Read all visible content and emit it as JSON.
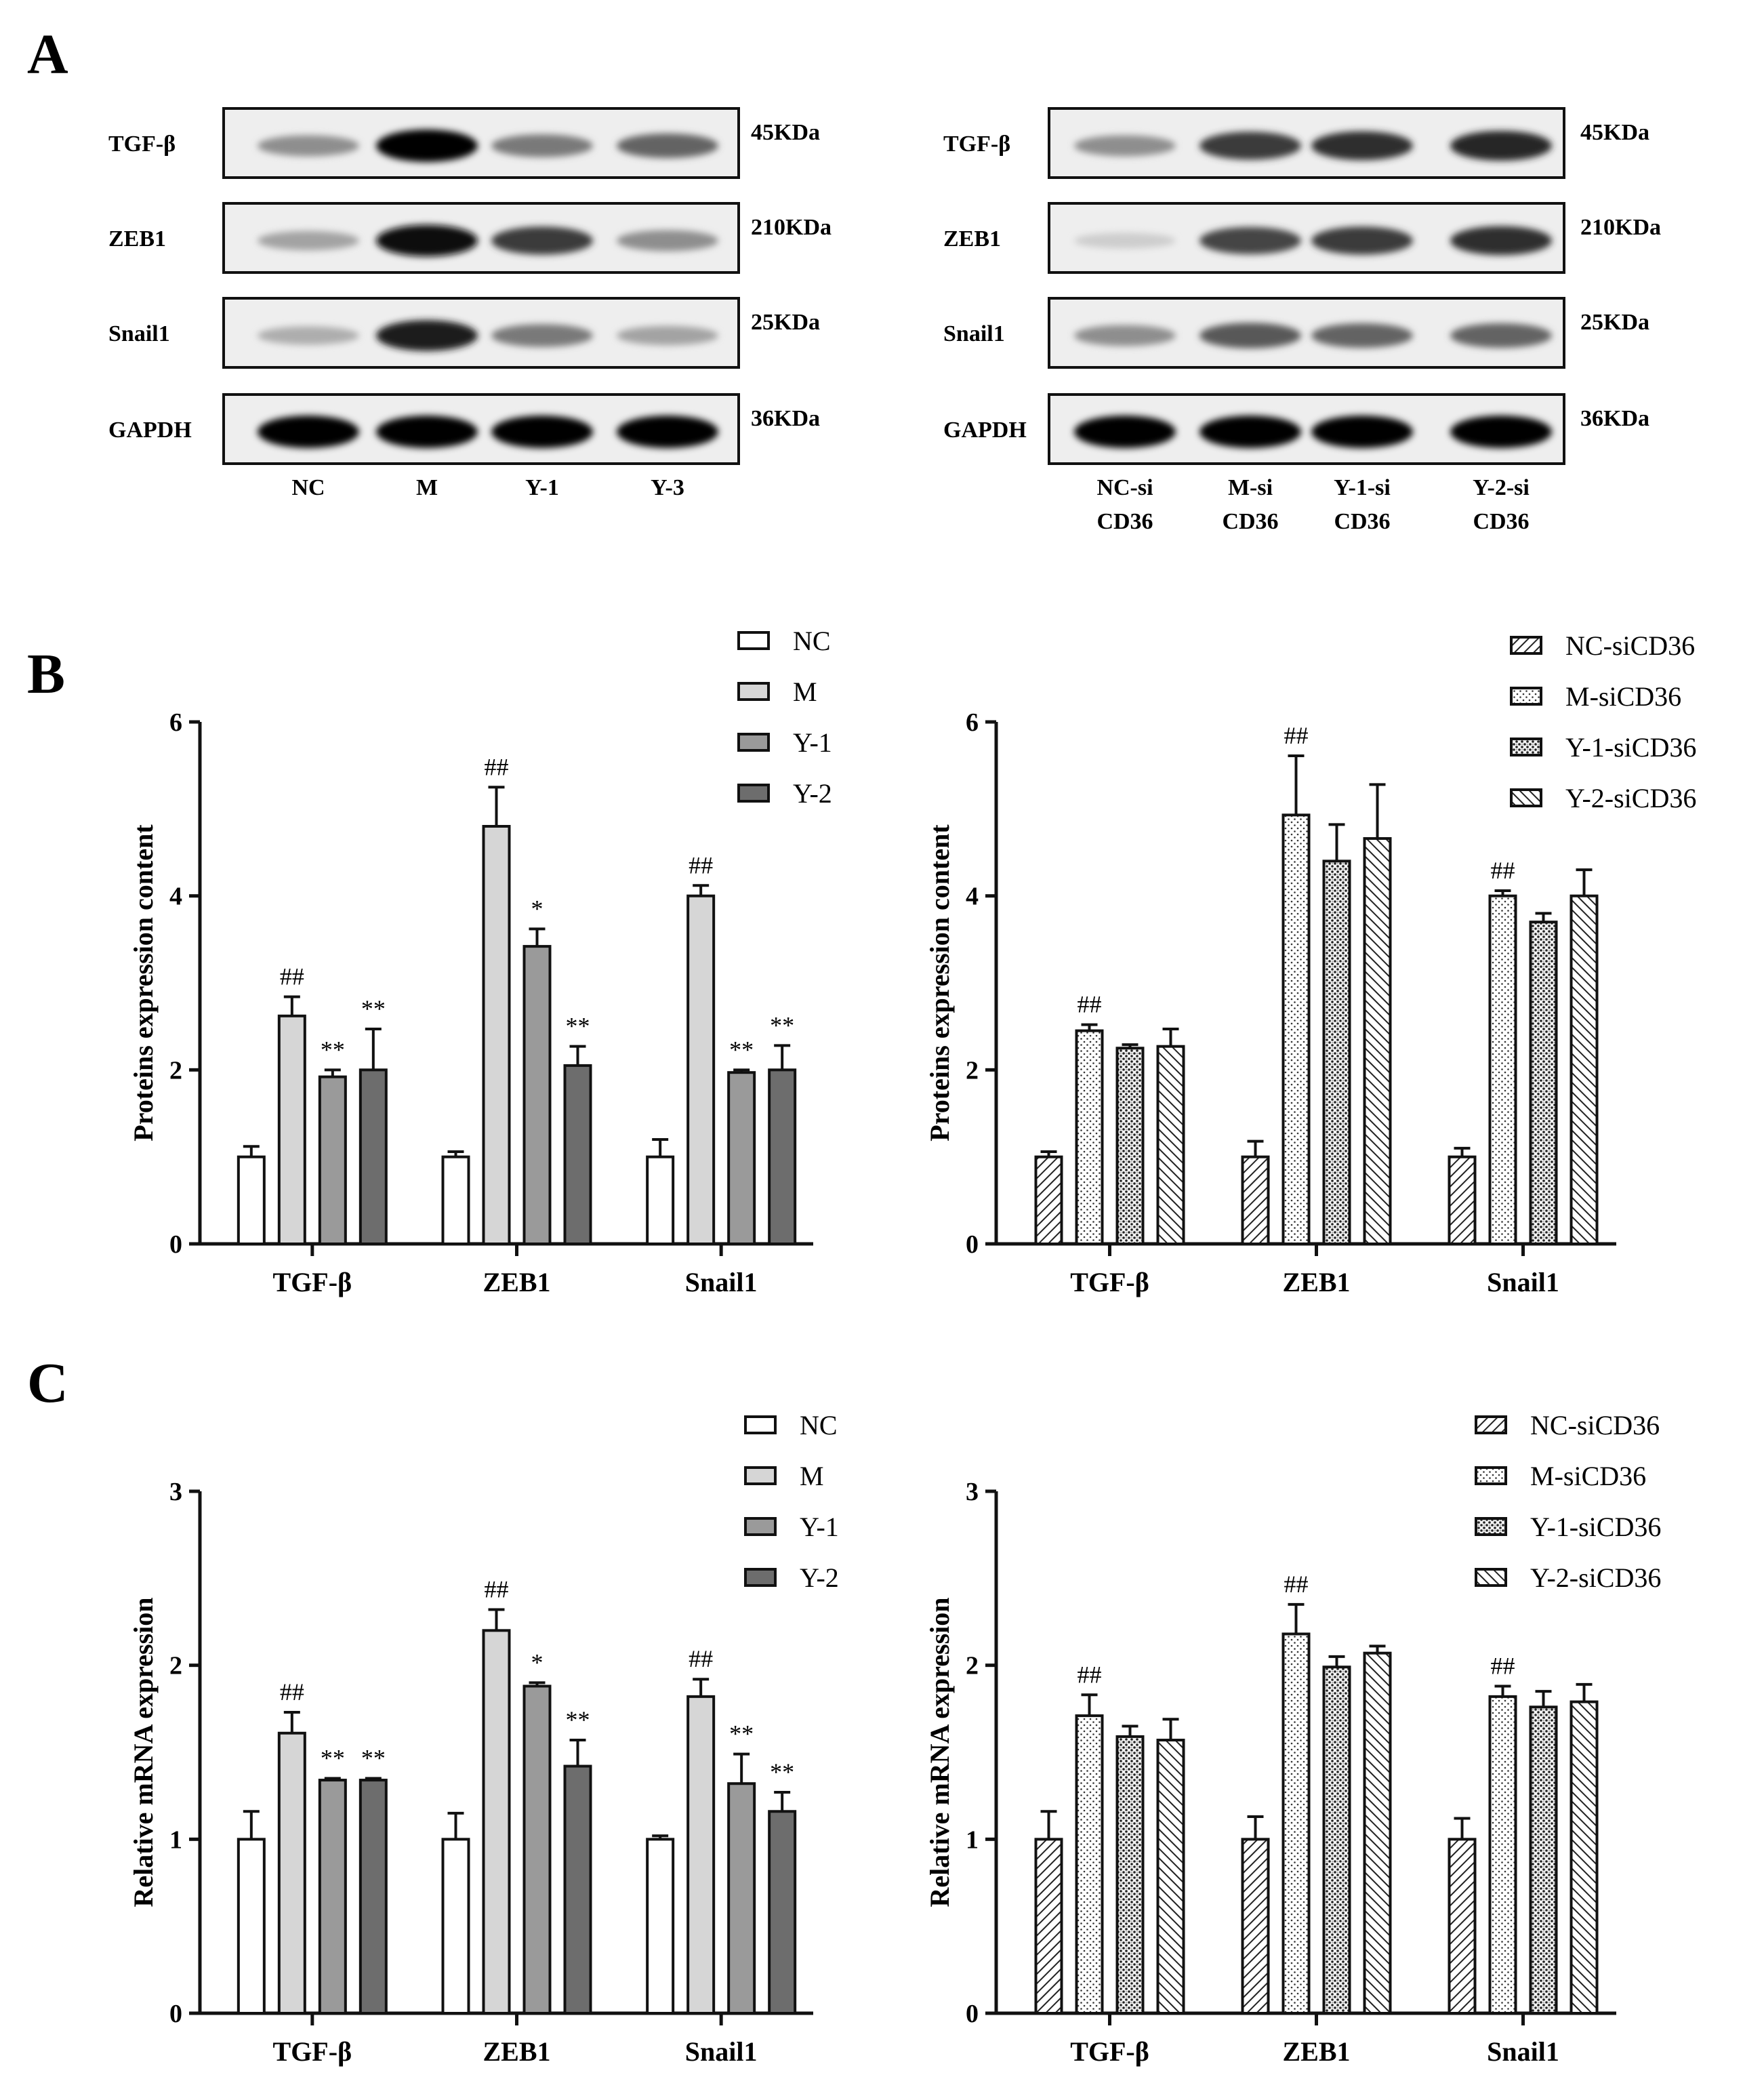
{
  "panel_labels": [
    "A",
    "B",
    "C"
  ],
  "western_blots": [
    {
      "rows": [
        {
          "label": "TGF-β",
          "kda": "45KDa",
          "intensity": [
            0.35,
            1.0,
            0.45,
            0.55
          ]
        },
        {
          "label": "ZEB1",
          "kda": "210KDa",
          "intensity": [
            0.25,
            0.95,
            0.75,
            0.35
          ]
        },
        {
          "label": "Snail1",
          "kda": "25KDa",
          "intensity": [
            0.2,
            0.9,
            0.45,
            0.25
          ]
        },
        {
          "label": "GAPDH",
          "kda": "36KDa",
          "intensity": [
            1.0,
            1.0,
            1.0,
            1.0
          ]
        }
      ],
      "lanes": [
        [
          "NC"
        ],
        [
          "M"
        ],
        [
          "Y-1"
        ],
        [
          "Y-3"
        ]
      ]
    },
    {
      "rows": [
        {
          "label": "TGF-β",
          "kda": "45KDa",
          "intensity": [
            0.35,
            0.75,
            0.8,
            0.85
          ]
        },
        {
          "label": "ZEB1",
          "kda": "210KDa",
          "intensity": [
            0.05,
            0.7,
            0.75,
            0.8
          ]
        },
        {
          "label": "Snail1",
          "kda": "25KDa",
          "intensity": [
            0.35,
            0.6,
            0.55,
            0.55
          ]
        },
        {
          "label": "GAPDH",
          "kda": "36KDa",
          "intensity": [
            1.0,
            1.0,
            1.0,
            1.0
          ]
        }
      ],
      "lanes": [
        [
          "NC-si",
          "CD36"
        ],
        [
          "M-si",
          "CD36"
        ],
        [
          "Y-1-si",
          "CD36"
        ],
        [
          "Y-2-si",
          "CD36"
        ]
      ]
    }
  ],
  "chart_data": [
    {
      "type": "bar",
      "categories": [
        "TGF-β",
        "ZEB1",
        "Snail1"
      ],
      "ylabel": "Proteins expression content",
      "ylim": [
        0,
        6
      ],
      "yticks": [
        "0",
        "2",
        "4",
        "6"
      ],
      "legend_position": "top-right",
      "series": [
        {
          "name": "NC",
          "fill": "white",
          "values": [
            1.0,
            1.0,
            1.0
          ],
          "errors": [
            0.12,
            0.06,
            0.2
          ],
          "marks": [
            "",
            "",
            ""
          ]
        },
        {
          "name": "M",
          "fill": "light",
          "values": [
            2.62,
            4.8,
            4.0
          ],
          "errors": [
            0.22,
            0.45,
            0.12
          ],
          "marks": [
            "##",
            "##",
            "##"
          ]
        },
        {
          "name": "Y-1",
          "fill": "mid",
          "values": [
            1.92,
            3.42,
            1.97
          ],
          "errors": [
            0.08,
            0.2,
            0.03
          ],
          "marks": [
            "**",
            "*",
            "**"
          ]
        },
        {
          "name": "Y-2",
          "fill": "dark",
          "values": [
            2.0,
            2.05,
            2.0
          ],
          "errors": [
            0.47,
            0.22,
            0.28
          ],
          "marks": [
            "**",
            "**",
            "**"
          ]
        }
      ]
    },
    {
      "type": "bar",
      "categories": [
        "TGF-β",
        "ZEB1",
        "Snail1"
      ],
      "ylabel": "Proteins expression content",
      "ylim": [
        0,
        6
      ],
      "yticks": [
        "0",
        "2",
        "4",
        "6"
      ],
      "legend_position": "top-right",
      "series": [
        {
          "name": "NC-siCD36",
          "fill": "hatch",
          "values": [
            1.0,
            1.0,
            1.0
          ],
          "errors": [
            0.06,
            0.18,
            0.1
          ],
          "marks": [
            "",
            "",
            ""
          ]
        },
        {
          "name": "M-siCD36",
          "fill": "dots",
          "values": [
            2.45,
            4.93,
            4.0
          ],
          "errors": [
            0.07,
            0.68,
            0.06
          ],
          "marks": [
            "##",
            "##",
            "##"
          ]
        },
        {
          "name": "Y-1-siCD36",
          "fill": "dots-dense",
          "values": [
            2.25,
            4.4,
            3.7
          ],
          "errors": [
            0.04,
            0.42,
            0.1
          ],
          "marks": [
            "",
            "",
            ""
          ]
        },
        {
          "name": "Y-2-siCD36",
          "fill": "hatch-rev",
          "values": [
            2.27,
            4.66,
            4.0
          ],
          "errors": [
            0.2,
            0.62,
            0.3
          ],
          "marks": [
            "",
            "",
            ""
          ]
        }
      ]
    },
    {
      "type": "bar",
      "categories": [
        "TGF-β",
        "ZEB1",
        "Snail1"
      ],
      "ylabel": "Relative mRNA expression",
      "ylim": [
        0,
        3
      ],
      "yticks": [
        "0",
        "1",
        "2",
        "3"
      ],
      "legend_position": "top-right",
      "series": [
        {
          "name": "NC",
          "fill": "white",
          "values": [
            1.0,
            1.0,
            1.0
          ],
          "errors": [
            0.16,
            0.15,
            0.02
          ],
          "marks": [
            "",
            "",
            ""
          ]
        },
        {
          "name": "M",
          "fill": "light",
          "values": [
            1.61,
            2.2,
            1.82
          ],
          "errors": [
            0.12,
            0.12,
            0.1
          ],
          "marks": [
            "##",
            "##",
            "##"
          ]
        },
        {
          "name": "Y-1",
          "fill": "mid",
          "values": [
            1.34,
            1.88,
            1.32
          ],
          "errors": [
            0.01,
            0.02,
            0.17
          ],
          "marks": [
            "**",
            "*",
            "**"
          ]
        },
        {
          "name": "Y-2",
          "fill": "dark",
          "values": [
            1.34,
            1.42,
            1.16
          ],
          "errors": [
            0.01,
            0.15,
            0.11
          ],
          "marks": [
            "**",
            "**",
            "**"
          ]
        }
      ]
    },
    {
      "type": "bar",
      "categories": [
        "TGF-β",
        "ZEB1",
        "Snail1"
      ],
      "ylabel": "Relative mRNA expression",
      "ylim": [
        0,
        3
      ],
      "yticks": [
        "0",
        "1",
        "2",
        "3"
      ],
      "legend_position": "top-right",
      "series": [
        {
          "name": "NC-siCD36",
          "fill": "hatch",
          "values": [
            1.0,
            1.0,
            1.0
          ],
          "errors": [
            0.16,
            0.13,
            0.12
          ],
          "marks": [
            "",
            "",
            ""
          ]
        },
        {
          "name": "M-siCD36",
          "fill": "dots",
          "values": [
            1.71,
            2.18,
            1.82
          ],
          "errors": [
            0.12,
            0.17,
            0.06
          ],
          "marks": [
            "##",
            "##",
            "##"
          ]
        },
        {
          "name": "Y-1-siCD36",
          "fill": "dots-dense",
          "values": [
            1.59,
            1.99,
            1.76
          ],
          "errors": [
            0.06,
            0.06,
            0.09
          ],
          "marks": [
            "",
            "",
            ""
          ]
        },
        {
          "name": "Y-2-siCD36",
          "fill": "hatch-rev",
          "values": [
            1.57,
            2.07,
            1.79
          ],
          "errors": [
            0.12,
            0.04,
            0.1
          ],
          "marks": [
            "",
            "",
            ""
          ]
        }
      ]
    }
  ]
}
